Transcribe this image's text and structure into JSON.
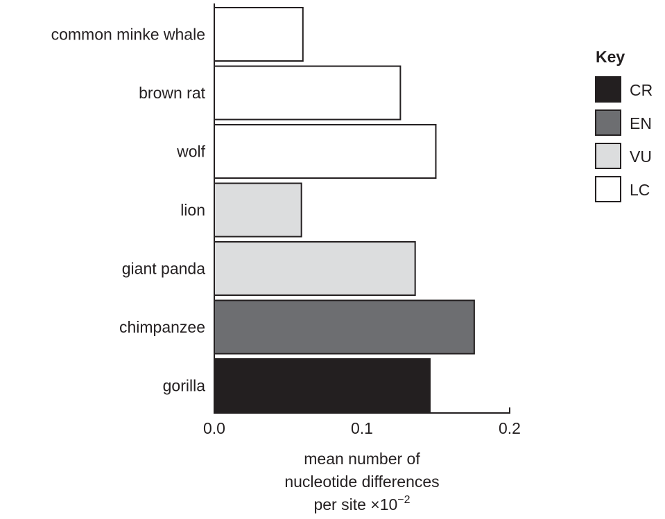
{
  "chart_data": {
    "type": "bar",
    "orientation": "horizontal",
    "categories": [
      "common minke whale",
      "brown rat",
      "wolf",
      "lion",
      "giant panda",
      "chimpanzee",
      "gorilla"
    ],
    "values": [
      0.06,
      0.126,
      0.15,
      0.059,
      0.136,
      0.176,
      0.146
    ],
    "status": [
      "LC",
      "LC",
      "LC",
      "VU",
      "VU",
      "EN",
      "CR"
    ],
    "xlabel_lines": [
      "mean number of",
      "nucleotide differences",
      "per site ×10"
    ],
    "xlabel_exponent": "−2",
    "ylabel": "",
    "xlim": [
      0.0,
      0.2
    ],
    "xticks": [
      0.0,
      0.1,
      0.2
    ],
    "xtick_labels": [
      "0.0",
      "0.1",
      "0.2"
    ],
    "grid": false,
    "legend": {
      "title": "Key",
      "placement": "right",
      "items": [
        {
          "label": "CR",
          "color": "#231f20"
        },
        {
          "label": "EN",
          "color": "#6d6e71"
        },
        {
          "label": "VU",
          "color": "#dcddde"
        },
        {
          "label": "LC",
          "color": "#ffffff"
        }
      ]
    },
    "bar_edge_color": "#231f20"
  }
}
